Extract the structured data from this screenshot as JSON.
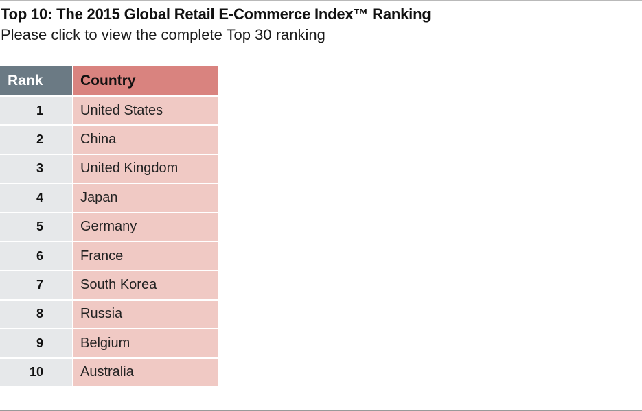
{
  "title": "Top 10: The 2015 Global Retail E-Commerce Index™ Ranking",
  "subtitle": "Please click to view the complete Top 30 ranking",
  "table": {
    "headers": {
      "rank": "Rank",
      "country": "Country"
    },
    "rows": [
      {
        "rank": "1",
        "country": "United States"
      },
      {
        "rank": "2",
        "country": "China"
      },
      {
        "rank": "3",
        "country": "United Kingdom"
      },
      {
        "rank": "4",
        "country": "Japan"
      },
      {
        "rank": "5",
        "country": "Germany"
      },
      {
        "rank": "6",
        "country": "France"
      },
      {
        "rank": "7",
        "country": "South Korea"
      },
      {
        "rank": "8",
        "country": "Russia"
      },
      {
        "rank": "9",
        "country": "Belgium"
      },
      {
        "rank": "10",
        "country": "Australia"
      }
    ]
  },
  "colors": {
    "rank_header": "#6b7a84",
    "country_header": "#d9837f",
    "rank_cell": "#e6e8ea",
    "country_cell": "#f0c9c4"
  }
}
